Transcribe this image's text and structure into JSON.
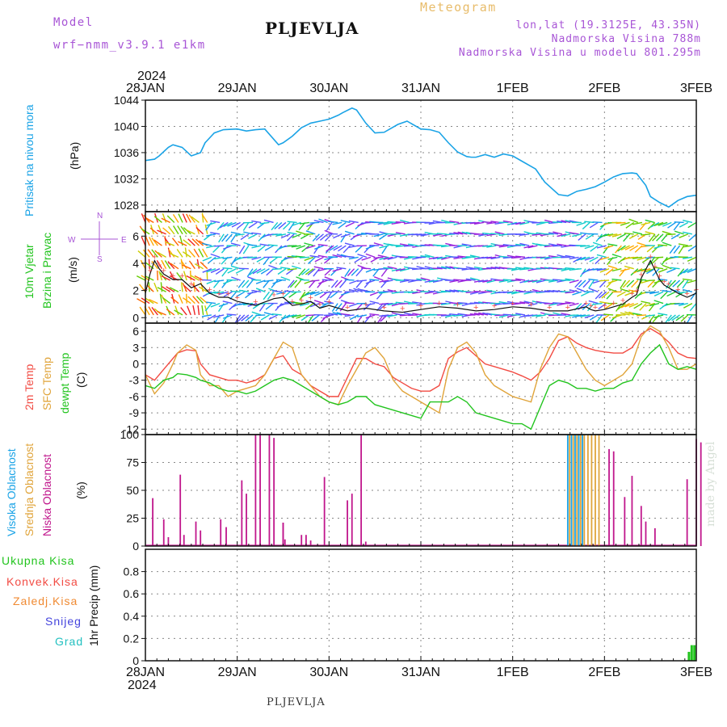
{
  "header": {
    "model_label": "Model",
    "model_name": "wrf−nmm_v3.9.1  e1km",
    "title": "PLJEVLJA",
    "meteogram": "Meteogram",
    "lonlat": "lon,lat (19.3125E, 43.35N)",
    "elev": "Nadmorska Visina 788m",
    "elev_model": "Nadmorska Visina u modelu 801.295m"
  },
  "footer_title": "PLJEVLJA",
  "watermark": "made by Angel",
  "colors": {
    "pressure": "#1aa3e6",
    "t2m": "#f24b43",
    "sfc": "#e0a43a",
    "dew": "#22c41e",
    "high_cloud": "#1aa3e6",
    "mid_cloud": "#e0a43a",
    "low_cloud": "#c0168c",
    "precip_total": "#22c41e"
  },
  "axes": {
    "year": "2024",
    "date_labels": [
      "28JAN",
      "29JAN",
      "30JAN",
      "31JAN",
      "1FEB",
      "2FEB",
      "3FEB"
    ]
  },
  "chart_data": [
    {
      "type": "line",
      "name": "pressure",
      "ylabel_main": "Pritisak na nivou mora",
      "ylabel_unit": "(hPa)",
      "ylim": [
        1027,
        1044
      ],
      "yticks": [
        1028,
        1032,
        1036,
        1040,
        1044
      ],
      "grid": true,
      "x": [
        0,
        0.1,
        0.15,
        0.25,
        0.3,
        0.4,
        0.5,
        0.6,
        0.65,
        0.75,
        0.85,
        1,
        1.1,
        1.2,
        1.3,
        1.4,
        1.45,
        1.5,
        1.6,
        1.7,
        1.8,
        1.9,
        2,
        2.1,
        2.15,
        2.25,
        2.3,
        2.4,
        2.5,
        2.6,
        2.75,
        2.85,
        3,
        3.1,
        3.2,
        3.3,
        3.4,
        3.5,
        3.55,
        3.6,
        3.7,
        3.8,
        3.9,
        4,
        4.1,
        4.25,
        4.35,
        4.5,
        4.6,
        4.7,
        4.8,
        4.9,
        5,
        5.1,
        5.2,
        5.3,
        5.35,
        5.45,
        5.5,
        5.6,
        5.7,
        5.8,
        5.9,
        6
      ],
      "series": [
        {
          "values": [
            1034.8,
            1035,
            1035.5,
            1036.8,
            1037.2,
            1036.8,
            1035.5,
            1036,
            1037.5,
            1039,
            1039.5,
            1039.6,
            1039.3,
            1039.5,
            1039.6,
            1038,
            1037.2,
            1037.5,
            1038.5,
            1039.8,
            1040.5,
            1040.8,
            1041.1,
            1041.7,
            1042.1,
            1042.8,
            1042.5,
            1040.5,
            1039,
            1039.1,
            1040.3,
            1040.8,
            1039.6,
            1039.5,
            1039.1,
            1037.5,
            1036.1,
            1035.4,
            1035.3,
            1035.3,
            1035.7,
            1035.3,
            1035.8,
            1035.5,
            1034.7,
            1033.5,
            1031.5,
            1029.6,
            1029.4,
            1030.1,
            1030.4,
            1030.8,
            1031.5,
            1032.3,
            1032.8,
            1032.9,
            1032.8,
            1031,
            1029.3,
            1028.4,
            1027.7,
            1028.7,
            1029.3,
            1029.5
          ]
        }
      ]
    },
    {
      "type": "line",
      "name": "wind",
      "ylabel_main": "10m Vjetar",
      "ylabel_sub": "Brzina i Pravac",
      "ylabel_unit": "(m/s)",
      "compass": {
        "n": "N",
        "s": "S",
        "w": "W",
        "e": "E"
      },
      "ylim": [
        -0.4,
        7.8
      ],
      "yticks": [
        0,
        2,
        4,
        6
      ],
      "grid": true,
      "x": [
        0,
        0.05,
        0.1,
        0.15,
        0.2,
        0.3,
        0.4,
        0.5,
        0.6,
        0.7,
        0.8,
        0.9,
        1,
        1.2,
        1.4,
        1.5,
        1.6,
        1.7,
        1.8,
        1.9,
        2,
        2.2,
        2.4,
        2.6,
        2.8,
        3,
        3.2,
        3.4,
        3.6,
        3.8,
        4,
        4.2,
        4.4,
        4.6,
        4.8,
        4.85,
        4.9,
        5,
        5.1,
        5.2,
        5.3,
        5.35,
        5.4,
        5.5,
        5.55,
        5.6,
        5.65,
        5.7,
        5.8,
        5.9,
        6
      ],
      "series": [
        {
          "values": [
            1.8,
            3.2,
            4.2,
            3.6,
            3.2,
            2.8,
            2.8,
            2.2,
            2.5,
            1.8,
            1.5,
            1.5,
            1.2,
            0.9,
            1.4,
            1.5,
            0.9,
            1,
            1.2,
            0.7,
            0.9,
            0.5,
            0.7,
            0.5,
            0.4,
            0.6,
            0.8,
            0.7,
            0.5,
            0.6,
            0.8,
            0.7,
            0.5,
            0.5,
            0.8,
            0.6,
            0.5,
            0.6,
            0.8,
            1,
            1.5,
            1.7,
            2.9,
            4.2,
            3.5,
            2.8,
            2.4,
            2.2,
            1.8,
            1.5,
            1.8
          ]
        }
      ]
    },
    {
      "type": "line",
      "name": "temperature",
      "ylabel_lines": [
        "2m Temp",
        "SFC Temp",
        "dewpt Temp"
      ],
      "ylabel_unit": "(C)",
      "ylim": [
        -13,
        7.5
      ],
      "yticks": [
        6,
        3,
        0,
        -3,
        -6,
        -9,
        -12
      ],
      "grid": true,
      "x": [
        0,
        0.1,
        0.2,
        0.3,
        0.35,
        0.45,
        0.55,
        0.6,
        0.7,
        0.8,
        0.9,
        1,
        1.1,
        1.2,
        1.3,
        1.4,
        1.5,
        1.6,
        1.7,
        1.8,
        1.9,
        2,
        2.1,
        2.2,
        2.3,
        2.4,
        2.5,
        2.6,
        2.7,
        2.8,
        2.9,
        3,
        3.1,
        3.2,
        3.3,
        3.4,
        3.5,
        3.6,
        3.7,
        3.8,
        3.9,
        4,
        4.1,
        4.2,
        4.3,
        4.4,
        4.5,
        4.6,
        4.7,
        4.8,
        4.9,
        5,
        5.1,
        5.2,
        5.3,
        5.4,
        5.5,
        5.6,
        5.7,
        5.8,
        5.9,
        6
      ],
      "series": [
        {
          "name": "2m Temp",
          "values": [
            -2,
            -3,
            -1,
            1,
            2,
            2.6,
            2.4,
            0,
            -2,
            -2.5,
            -3,
            -3,
            -3.5,
            -3,
            -2,
            1,
            1.5,
            -1,
            -2,
            -4,
            -5,
            -6,
            -6,
            -2.5,
            1,
            1,
            0,
            -0.5,
            -2.5,
            -3.5,
            -4.5,
            -5,
            -5,
            -4,
            1,
            2.2,
            3,
            1.5,
            0,
            -0.5,
            -1,
            -1.5,
            -2.2,
            -3,
            -1.5,
            1,
            4.3,
            5,
            3.8,
            3,
            2.5,
            2.2,
            2,
            2,
            3,
            5.5,
            6.5,
            5.5,
            4,
            2,
            1.2,
            1
          ]
        },
        {
          "name": "SFC Temp",
          "values": [
            -2,
            -5.5,
            -3.5,
            0,
            2,
            3.5,
            2.5,
            -2,
            -4,
            -4,
            -6,
            -5,
            -4.5,
            -4,
            -2,
            1,
            4,
            3,
            -2,
            -4,
            -6,
            -7,
            -7.5,
            -4,
            -1,
            2,
            3,
            1,
            -3,
            -5,
            -6,
            -7,
            -8,
            -9,
            -1,
            3,
            4,
            2,
            -2,
            -4,
            -5,
            -6,
            -6.5,
            -7,
            -1,
            3,
            5.5,
            5,
            2,
            -1,
            -3,
            -4,
            -3,
            -2,
            0,
            5,
            7,
            6,
            3,
            -1,
            -1,
            0
          ]
        },
        {
          "name": "dewpt Temp",
          "values": [
            -4,
            -4.5,
            -3,
            -2.5,
            -1.8,
            -2,
            -2.5,
            -3,
            -3.5,
            -4.5,
            -5,
            -5,
            -5.5,
            -5,
            -4,
            -3,
            -2.5,
            -3,
            -4,
            -5,
            -6,
            -7,
            -7.5,
            -7,
            -6,
            -6,
            -7.5,
            -8,
            -8.5,
            -9,
            -9.5,
            -10,
            -7,
            -7,
            -7,
            -6,
            -7,
            -9,
            -9.5,
            -10,
            -10.5,
            -11,
            -11,
            -12,
            -8,
            -4,
            -3,
            -3.5,
            -4.5,
            -4.5,
            -5,
            -4.5,
            -4.5,
            -3.5,
            -3,
            0,
            2,
            3.5,
            0,
            -1,
            -0.5,
            -1
          ]
        }
      ]
    },
    {
      "type": "bar",
      "name": "cloud",
      "ylabel_lines": [
        "Visoka Oblacnost",
        "Srednja Oblacnost",
        "Niska Oblacnost"
      ],
      "ylabel_unit": "(%)",
      "ylim": [
        0,
        100
      ],
      "yticks": [
        0,
        25,
        50,
        75,
        100
      ],
      "grid": true,
      "series": [
        {
          "name": "Niska Oblacnost",
          "x": [
            0.08,
            0.2,
            0.25,
            0.38,
            0.42,
            0.55,
            0.6,
            0.82,
            0.88,
            1.05,
            1.1,
            1.2,
            1.25,
            1.35,
            1.4,
            1.5,
            1.5,
            1.52,
            1.7,
            1.75,
            1.8,
            1.95,
            2.2,
            2.25,
            2.35,
            2.4,
            4.5,
            4.55,
            4.7,
            4.75,
            4.85,
            4.95,
            5.05,
            5.1,
            5.22,
            5.3,
            5.4,
            5.45,
            5.55,
            5.9,
            6,
            6.05
          ],
          "values": [
            43,
            24,
            8,
            64,
            10,
            22,
            14,
            24,
            17,
            59,
            47,
            100,
            100,
            100,
            97,
            21,
            21,
            6,
            10,
            10,
            5,
            62,
            41,
            47,
            100,
            4,
            0,
            0,
            0,
            0,
            0,
            0,
            87,
            85,
            44,
            63,
            36,
            22,
            16,
            60,
            96,
            93
          ]
        },
        {
          "name": "Srednja Oblacnost",
          "x": [
            4.62,
            4.66,
            4.7,
            4.74,
            4.78,
            4.82,
            4.86,
            4.9,
            4.94
          ],
          "values": [
            100,
            100,
            100,
            100,
            100,
            100,
            100,
            100,
            100
          ]
        },
        {
          "name": "Visoka Oblacnost",
          "x": [
            4.6,
            4.64,
            4.68,
            4.72,
            4.76
          ],
          "values": [
            100,
            100,
            100,
            100,
            100
          ]
        }
      ]
    },
    {
      "type": "bar",
      "name": "precip",
      "ylabel_main": "1hr Precip (mm)",
      "legend": [
        "Ukupna Kisa",
        "Konvek.Kisa",
        "Zaledj.Kisa",
        "Snijeg",
        "Grad"
      ],
      "legend_colors": [
        "#22c41e",
        "#f24b43",
        "#f08a32",
        "#4444dd",
        "#22c0c0"
      ],
      "ylim": [
        0,
        1
      ],
      "yticks": [
        0,
        0.2,
        0.4,
        0.6,
        0.8
      ],
      "grid": true,
      "series": [
        {
          "name": "Ukupna Kisa",
          "x": [
            5.92,
            5.95,
            5.98
          ],
          "values": [
            0.08,
            0.14,
            0.14
          ]
        }
      ]
    }
  ]
}
